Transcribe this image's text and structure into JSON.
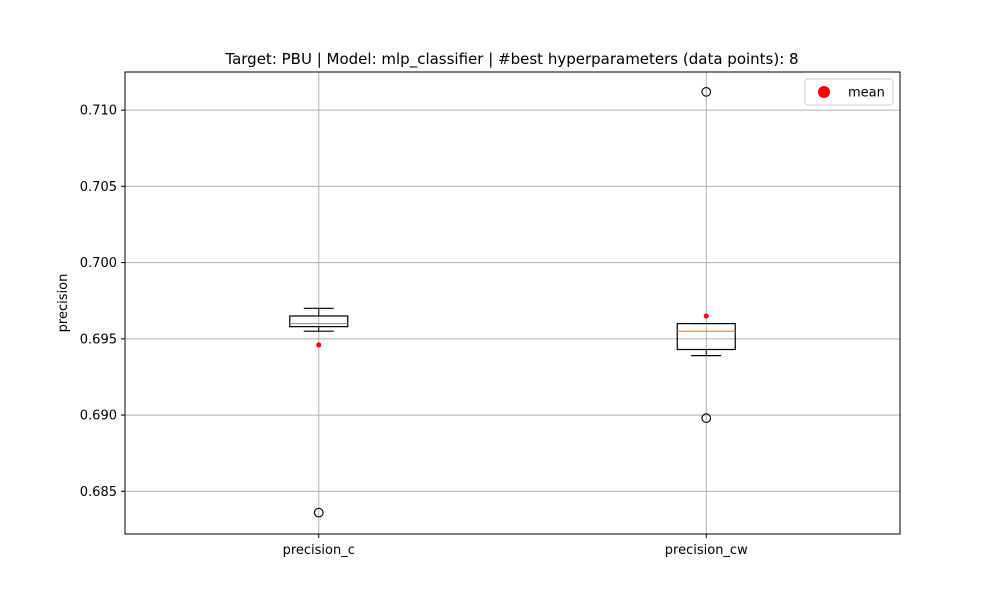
{
  "chart_data": {
    "type": "box",
    "title": "Target: PBU | Model: mlp_classifier | #best hyperparameters (data points): 8",
    "xlabel": "",
    "ylabel": "precision",
    "ylim": [
      0.6822,
      0.7125
    ],
    "yticks": [
      0.685,
      0.69,
      0.695,
      0.7,
      0.705,
      0.71
    ],
    "ytick_labels": [
      "0.685",
      "0.690",
      "0.695",
      "0.700",
      "0.705",
      "0.710"
    ],
    "grid": true,
    "legend": {
      "position": "top-right",
      "entries": [
        {
          "label": "mean",
          "color": "#ff0000",
          "marker": "circle"
        }
      ]
    },
    "categories": [
      "precision_c",
      "precision_cw"
    ],
    "boxes": [
      {
        "label": "precision_c",
        "whisker_low": 0.6955,
        "q1": 0.6958,
        "median": 0.696,
        "q3": 0.6965,
        "whisker_high": 0.697,
        "mean": 0.6946,
        "outliers": [
          0.6836
        ]
      },
      {
        "label": "precision_cw",
        "whisker_low": 0.6939,
        "q1": 0.6943,
        "median": 0.6955,
        "q3": 0.696,
        "whisker_high": 0.696,
        "mean": 0.6965,
        "outliers": [
          0.7112,
          0.6898
        ]
      }
    ],
    "colors": {
      "box": "#000000",
      "median": "#ff7f0e",
      "mean": "#ff0000",
      "grid": "#b0b0b0"
    }
  }
}
